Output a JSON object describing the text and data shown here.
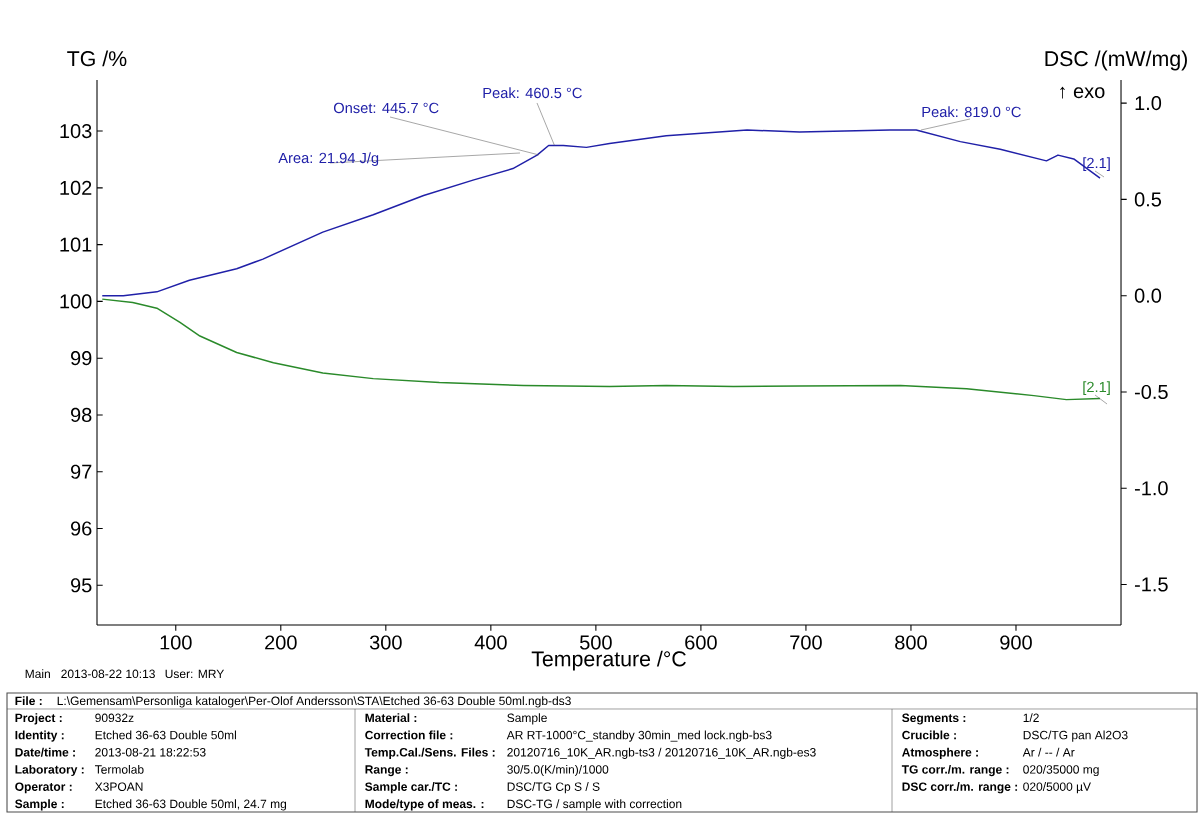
{
  "chart_data": {
    "type": "line",
    "xlabel": "Temperature /°C",
    "ylabel": "TG /%",
    "y2label": "DSC /(mW/mg)",
    "xlim": [
      25,
      1000
    ],
    "xticks": [
      100,
      200,
      300,
      400,
      500,
      600,
      700,
      800,
      900
    ],
    "ylim": [
      94.3,
      103.9
    ],
    "yticks": [
      95,
      96,
      97,
      98,
      99,
      100,
      101,
      102,
      103
    ],
    "y2lim": [
      -1.71,
      1.12
    ],
    "y2ticks": [
      {
        "value": -1.5,
        "label": "-1.5"
      },
      {
        "value": -1.0,
        "label": "-1.0"
      },
      {
        "value": -0.5,
        "label": "-0.5"
      },
      {
        "value": 0.0,
        "label": "0.0"
      },
      {
        "value": 0.5,
        "label": "0.5"
      },
      {
        "value": 1.0,
        "label": "1.0"
      }
    ],
    "series": [
      {
        "color": "#2020a8",
        "axis": "y2",
        "x": [
          30,
          50,
          82,
          113,
          158,
          183,
          240,
          288,
          336,
          383,
          421,
          444,
          455,
          469,
          491,
          513,
          567,
          644,
          694,
          780,
          805,
          847,
          885,
          929,
          940,
          955,
          980
        ],
        "values": [
          0.0,
          0.0,
          0.02,
          0.08,
          0.14,
          0.19,
          0.33,
          0.42,
          0.52,
          0.6,
          0.66,
          0.73,
          0.78,
          0.78,
          0.77,
          0.79,
          0.83,
          0.86,
          0.85,
          0.86,
          0.86,
          0.8,
          0.76,
          0.7,
          0.73,
          0.71,
          0.61
        ]
      },
      {
        "color": "#2a8a2a",
        "axis": "y",
        "x": [
          30,
          59,
          82,
          104,
          123,
          158,
          193,
          240,
          288,
          351,
          431,
          513,
          567,
          631,
          694,
          790,
          853,
          917,
          948,
          980
        ],
        "values": [
          100.04,
          99.98,
          99.88,
          99.63,
          99.39,
          99.1,
          98.92,
          98.74,
          98.64,
          98.57,
          98.52,
          98.5,
          98.52,
          98.5,
          98.51,
          98.52,
          98.46,
          98.34,
          98.27,
          98.29
        ]
      }
    ],
    "annotations": [
      {
        "text": "Onset: 445.7 °C",
        "x": 445.7,
        "y": 102.58
      },
      {
        "text": "Peak: 460.5 °C",
        "x": 460.5,
        "y": 102.75
      },
      "Area: 21.94 J/g",
      "Peak: 819.0 °C",
      "[2.1]",
      "[2.1]",
      "↑ exo",
      "Main",
      "2013-08-22 10:13",
      "User: MRY",
      "File :",
      "L:\\Gemensam\\Personliga kataloger\\Per-Olof Andersson\\STA\\Etched 36-63 Double 50ml.ngb-ds3",
      "Project :",
      "90932z",
      "Identity :",
      "Etched 36-63 Double 50ml",
      "Date/time :",
      "2013-08-21 18:22:53",
      "Laboratory :",
      "Termolab",
      "Operator :",
      "X3POAN",
      "Sample :",
      "Etched 36-63 Double 50ml, 24.7 mg",
      "Material :",
      "Sample",
      "Correction file :",
      "AR RT-1000°C_standby 30min_med lock.ngb-bs3",
      "Temp.Cal./Sens. Files :",
      "20120716_10K_AR.ngb-ts3 / 20120716_10K_AR.ngb-es3",
      "Range :",
      "30/5.0(K/min)/1000",
      "Sample car./TC :",
      "DSC/TG Cp S / S",
      "Mode/type of meas. :",
      "DSC-TG / sample with correction",
      "Segments :",
      "1/2",
      "Crucible :",
      "DSC/TG pan Al2O3",
      "Atmosphere :",
      "Ar / -- / Ar",
      "TG corr./m. range :",
      "020/35000 mg",
      "DSC corr./m. range :",
      "020/5000 µV"
    ]
  }
}
